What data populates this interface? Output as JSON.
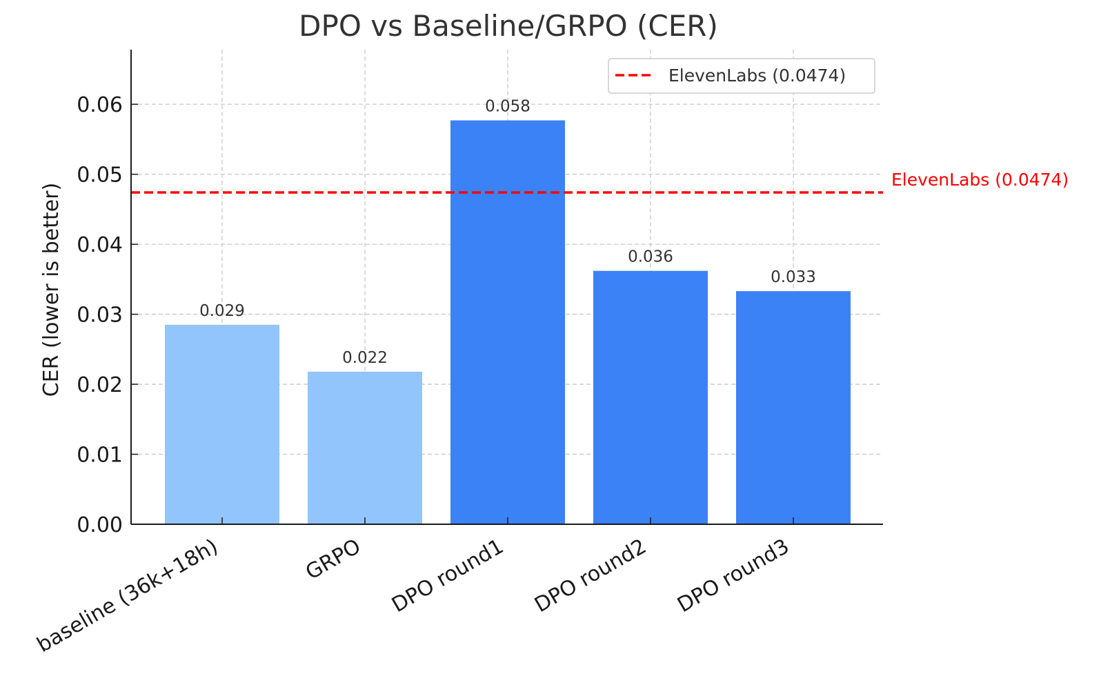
{
  "chart_data": {
    "type": "bar",
    "title": "DPO vs Baseline/GRPO (CER)",
    "xlabel": "",
    "ylabel": "CER (lower is better)",
    "categories": [
      "baseline (36k+18h)",
      "GRPO",
      "DPO round1",
      "DPO round2",
      "DPO round3"
    ],
    "values": [
      0.0285,
      0.0218,
      0.0577,
      0.0362,
      0.0333
    ],
    "value_labels": [
      "0.029",
      "0.022",
      "0.058",
      "0.036",
      "0.033"
    ],
    "bar_colors": [
      "#93c5fd",
      "#93c5fd",
      "#3b82f6",
      "#3b82f6",
      "#3b82f6"
    ],
    "ylim": [
      0,
      0.0678
    ],
    "yticks": [
      0,
      0.01,
      0.02,
      0.03,
      0.04,
      0.05,
      0.06
    ],
    "ytick_labels": [
      "0.00",
      "0.01",
      "0.02",
      "0.03",
      "0.04",
      "0.05",
      "0.06"
    ],
    "grid": true,
    "legend": {
      "placement": "top-right",
      "entries": [
        "ElevenLabs (0.0474)"
      ]
    },
    "reference_line": {
      "value": 0.0474,
      "label": "ElevenLabs (0.0474)",
      "style": "dashed",
      "color": "#ff0000"
    }
  }
}
